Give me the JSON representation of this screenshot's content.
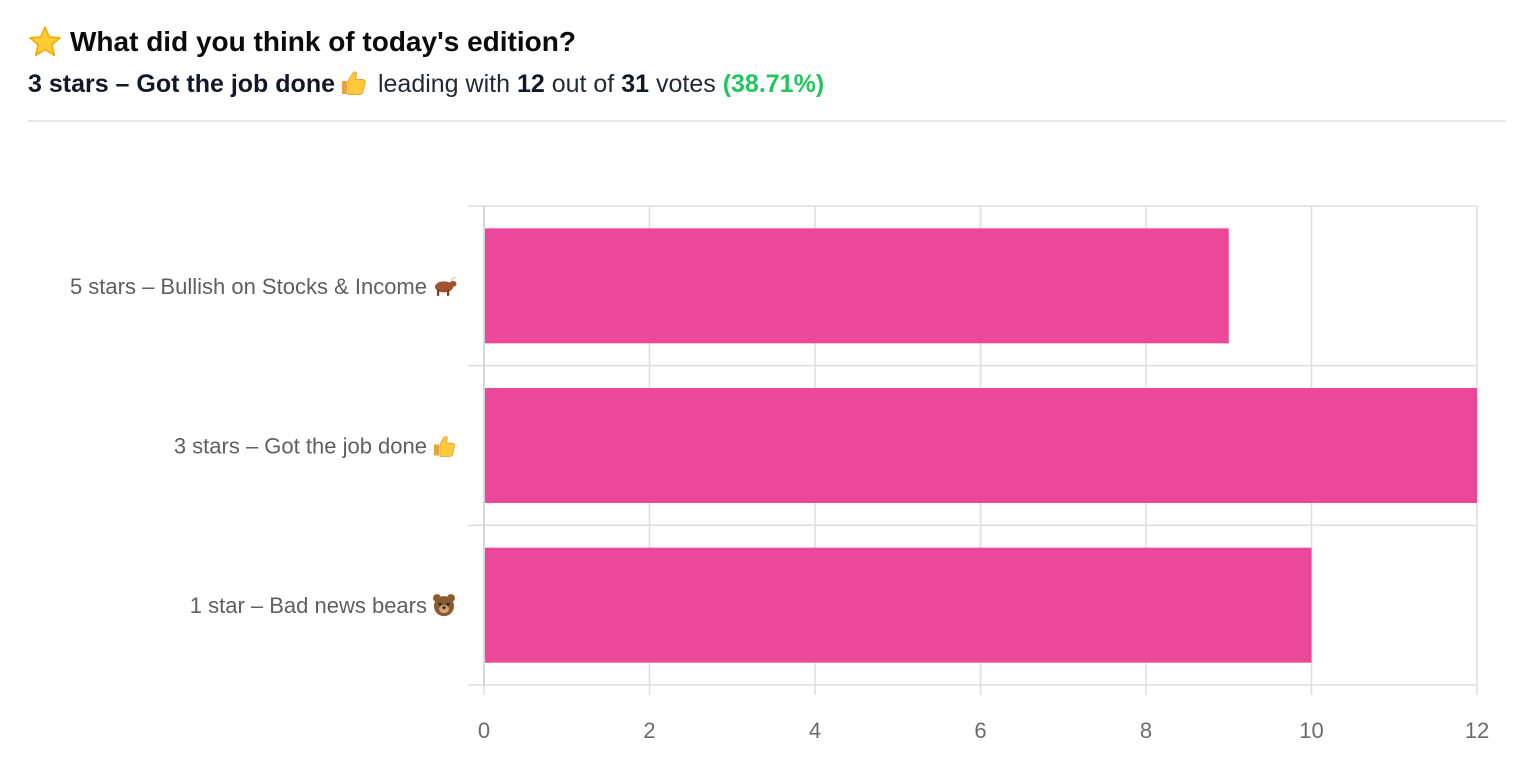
{
  "poll": {
    "title": "What did you think of today's edition?",
    "title_icon": "star-icon",
    "leader": "3 stars – Got the job done",
    "leader_icon": "thumbs-up-icon",
    "leading_with_text": "leading with",
    "leader_votes": "12",
    "out_of_text": "out of",
    "total_votes": "31",
    "votes_text": "votes",
    "percent": "(38.71%)"
  },
  "colors": {
    "bar": "#EC4899",
    "percent": "#22C55E",
    "grid": "#DDDDDD"
  },
  "chart_data": {
    "type": "bar",
    "orientation": "horizontal",
    "categories": [
      "5 stars – Bullish on Stocks & Income",
      "3 stars – Got the job done",
      "1 star – Bad news bears"
    ],
    "category_icons": [
      "ox-icon",
      "thumbs-up-icon",
      "bear-face-icon"
    ],
    "values": [
      9,
      12,
      10
    ],
    "xlim": [
      0,
      12
    ],
    "xticks": [
      0,
      2,
      4,
      6,
      8,
      10,
      12
    ],
    "grid": true,
    "title": "",
    "xlabel": "",
    "ylabel": ""
  }
}
